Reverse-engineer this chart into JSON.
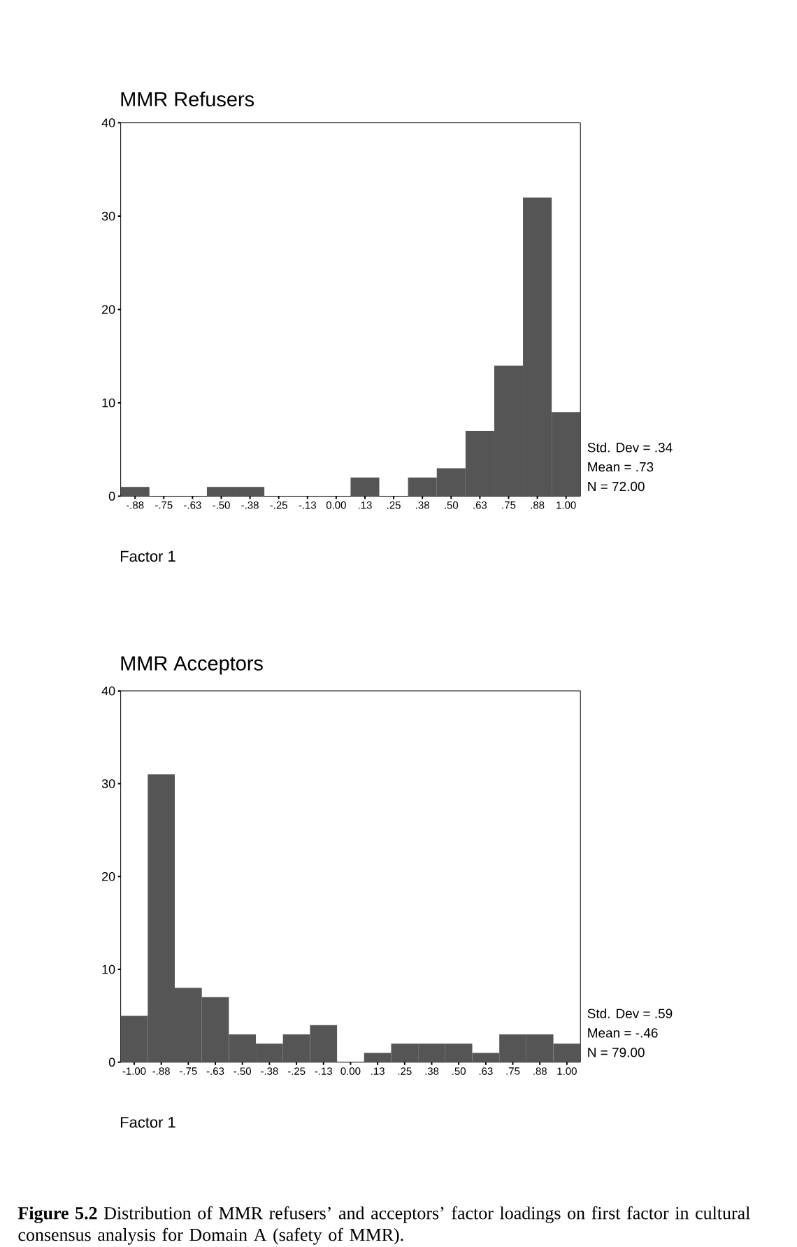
{
  "chart_data": [
    {
      "type": "histogram",
      "title": "MMR Refusers",
      "xlabel": "Factor 1",
      "color": "#555555",
      "bins": [
        -0.9375,
        -0.8125,
        -0.6875,
        -0.5625,
        -0.4375,
        -0.3125,
        -0.1875,
        -0.0625,
        0.0625,
        0.1875,
        0.3125,
        0.4375,
        0.5625,
        0.6875,
        0.8125,
        0.9375,
        1.0625
      ],
      "values": [
        1,
        0,
        0,
        1,
        1,
        0,
        0,
        0,
        2,
        0,
        2,
        3,
        7,
        14,
        32,
        9
      ],
      "xlim": [
        -0.9375,
        1.0625
      ],
      "xticks": [
        {
          "value": -0.875,
          "label": "-.88"
        },
        {
          "value": -0.75,
          "label": "-.75"
        },
        {
          "value": -0.625,
          "label": "-.63"
        },
        {
          "value": -0.5,
          "label": "-.50"
        },
        {
          "value": -0.375,
          "label": "-.38"
        },
        {
          "value": -0.25,
          "label": "-.25"
        },
        {
          "value": -0.125,
          "label": "-.13"
        },
        {
          "value": 0,
          "label": "0.00"
        },
        {
          "value": 0.125,
          "label": ".13"
        },
        {
          "value": 0.25,
          "label": ".25"
        },
        {
          "value": 0.375,
          "label": ".38"
        },
        {
          "value": 0.5,
          "label": ".50"
        },
        {
          "value": 0.625,
          "label": ".63"
        },
        {
          "value": 0.75,
          "label": ".75"
        },
        {
          "value": 0.875,
          "label": ".88"
        },
        {
          "value": 1,
          "label": "1.00"
        }
      ],
      "ylim": [
        0,
        40
      ],
      "yticks": [
        0,
        10,
        20,
        30,
        40
      ],
      "annotations": [
        "Std. Dev = .34",
        "Mean = .73",
        "N = 72.00"
      ]
    },
    {
      "type": "histogram",
      "title": "MMR Acceptors",
      "xlabel": "Factor 1",
      "color": "#555555",
      "bins": [
        -1.0625,
        -0.9375,
        -0.8125,
        -0.6875,
        -0.5625,
        -0.4375,
        -0.3125,
        -0.1875,
        -0.0625,
        0.0625,
        0.1875,
        0.3125,
        0.4375,
        0.5625,
        0.6875,
        0.8125,
        0.9375,
        1.0625
      ],
      "values": [
        5,
        31,
        8,
        7,
        3,
        2,
        3,
        4,
        0,
        1,
        2,
        2,
        2,
        1,
        3,
        3,
        2
      ],
      "xlim": [
        -1.0625,
        1.0625
      ],
      "xticks": [
        {
          "value": -1,
          "label": "-1.00"
        },
        {
          "value": -0.875,
          "label": "-.88"
        },
        {
          "value": -0.75,
          "label": "-.75"
        },
        {
          "value": -0.625,
          "label": "-.63"
        },
        {
          "value": -0.5,
          "label": "-.50"
        },
        {
          "value": -0.375,
          "label": "-.38"
        },
        {
          "value": -0.25,
          "label": "-.25"
        },
        {
          "value": -0.125,
          "label": "-.13"
        },
        {
          "value": 0,
          "label": "0.00"
        },
        {
          "value": 0.125,
          "label": ".13"
        },
        {
          "value": 0.25,
          "label": ".25"
        },
        {
          "value": 0.375,
          "label": ".38"
        },
        {
          "value": 0.5,
          "label": ".50"
        },
        {
          "value": 0.625,
          "label": ".63"
        },
        {
          "value": 0.75,
          "label": ".75"
        },
        {
          "value": 0.875,
          "label": ".88"
        },
        {
          "value": 1,
          "label": "1.00"
        }
      ],
      "ylim": [
        0,
        40
      ],
      "yticks": [
        0,
        10,
        20,
        30,
        40
      ],
      "annotations": [
        "Std. Dev = .59",
        "Mean = -.46",
        "N = 79.00",
        "**Figure 5.2** Distribution of MMR refusers’ and acceptors’ factor loadings on first factor in cultural consensus analysis for Domain A (safety of MMR)."
      ]
    }
  ]
}
